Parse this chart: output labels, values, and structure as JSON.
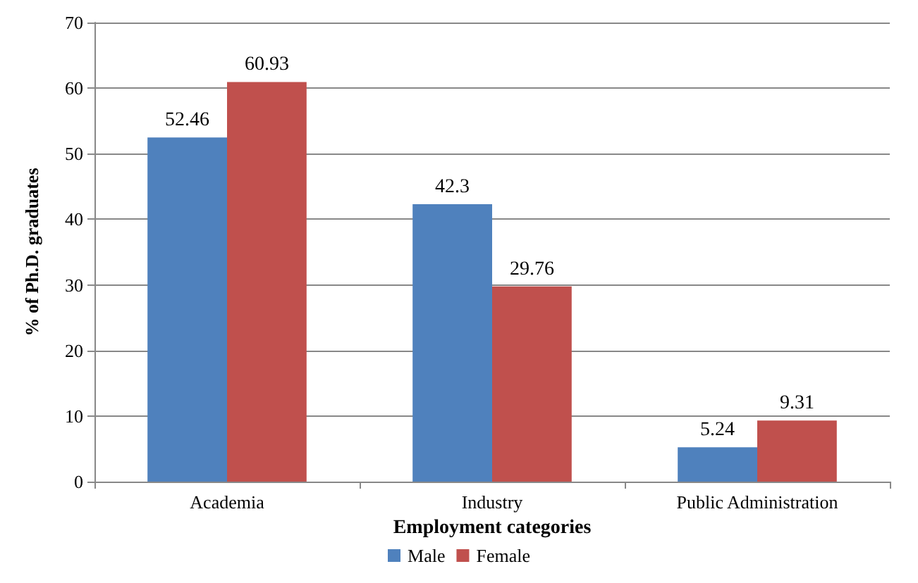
{
  "chart_data": {
    "type": "bar",
    "xlabel": "Employment categories",
    "ylabel": "% of Ph.D. graduates",
    "categories": [
      "Academia",
      "Industry",
      "Public Administration"
    ],
    "series": [
      {
        "name": "Male",
        "color": "#4f81bd",
        "values": [
          52.46,
          42.3,
          5.24
        ]
      },
      {
        "name": "Female",
        "color": "#c0504d",
        "values": [
          60.93,
          29.76,
          9.31
        ]
      }
    ],
    "ylim": [
      0,
      70
    ],
    "yticks": [
      0,
      10,
      20,
      30,
      40,
      50,
      60,
      70
    ],
    "grid": "y",
    "legend": "bottom",
    "data_labels": true
  }
}
